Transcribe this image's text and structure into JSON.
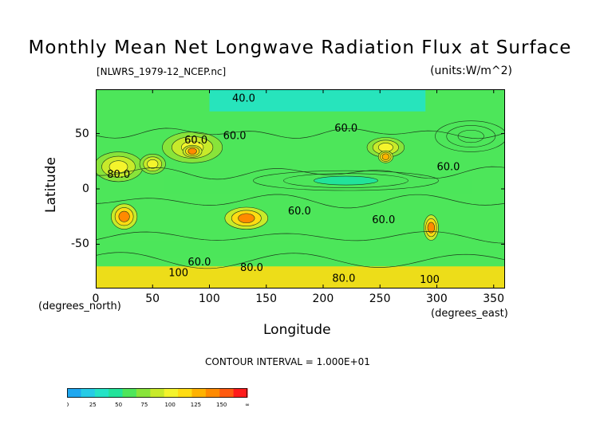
{
  "chart_data": {
    "type": "heatmap",
    "title": "Monthly Mean Net Longwave Radiation Flux at Surface",
    "file_label": "[NLWRS_1979-12_NCEP.nc]",
    "units_label": "(units:W/m^2)",
    "xlabel": "Longitude",
    "ylabel": "Latitude",
    "x_unit_label": "(degrees_east)",
    "y_unit_label": "(degrees_north)",
    "xlim": [
      0,
      360
    ],
    "ylim": [
      -90,
      90
    ],
    "x_ticks": [
      0,
      50,
      100,
      150,
      200,
      250,
      300,
      350
    ],
    "y_ticks": [
      50,
      0,
      -50
    ],
    "contour_interval_text": "CONTOUR INTERVAL = 1.000E+01",
    "contour_labels": [
      {
        "text": "40.0",
        "lon": 120,
        "lat": 79
      },
      {
        "text": "60.0",
        "lon": 210,
        "lat": 52
      },
      {
        "text": "60.0",
        "lon": 78,
        "lat": 41
      },
      {
        "text": "60.0",
        "lon": 112,
        "lat": 45
      },
      {
        "text": "80.0",
        "lon": 10,
        "lat": 10
      },
      {
        "text": "60.0",
        "lon": 300,
        "lat": 17
      },
      {
        "text": "60.0",
        "lon": 169,
        "lat": -23
      },
      {
        "text": "60.0",
        "lon": 243,
        "lat": -31
      },
      {
        "text": "60.0",
        "lon": 81,
        "lat": -69
      },
      {
        "text": "100",
        "lon": 64,
        "lat": -79
      },
      {
        "text": "80.0",
        "lon": 127,
        "lat": -74
      },
      {
        "text": "80.0",
        "lon": 208,
        "lat": -84
      },
      {
        "text": "100",
        "lon": 285,
        "lat": -85
      }
    ],
    "colorbar": {
      "ticks": [
        "0",
        "25",
        "50",
        "75",
        "100",
        "125",
        "150",
        "∞"
      ],
      "levels": [
        0,
        12.5,
        25,
        37.5,
        50,
        62.5,
        75,
        87.5,
        100,
        112.5,
        125,
        137.5,
        150
      ],
      "colors": [
        "#1ea7f0",
        "#25cbe6",
        "#24e3c6",
        "#22e39a",
        "#4de65a",
        "#88e43a",
        "#c8ea2a",
        "#f4f42c",
        "#ffdc12",
        "#ffb200",
        "#ff8a00",
        "#ff5a10",
        "#ff1a1a"
      ]
    },
    "features": [
      {
        "name": "global-background",
        "value": 62
      },
      {
        "name": "north-atlantic-band",
        "lon": [
          300,
          360
        ],
        "lat": [
          35,
          60
        ],
        "value": 50
      },
      {
        "name": "tropical-band",
        "lon": [
          60,
          330
        ],
        "lat": [
          -5,
          12
        ],
        "value": 50
      },
      {
        "name": "tropical-band-2",
        "lon": [
          140,
          300
        ],
        "lat": [
          0,
          15
        ],
        "value": 48
      },
      {
        "name": "southern-ocean-band",
        "lon": [
          0,
          360
        ],
        "lat": [
          -48,
          -62
        ],
        "value": 52
      },
      {
        "name": "sahara",
        "lon": [
          0,
          40
        ],
        "lat": [
          8,
          32
        ],
        "value": 95
      },
      {
        "name": "arabia",
        "lon": [
          40,
          60
        ],
        "lat": [
          15,
          30
        ],
        "value": 90
      },
      {
        "name": "central-asia",
        "lon": [
          60,
          110
        ],
        "lat": [
          25,
          50
        ],
        "value": 90
      },
      {
        "name": "tibet",
        "lon": [
          78,
          92
        ],
        "lat": [
          30,
          38
        ],
        "value": 130
      },
      {
        "name": "north-america",
        "lon": [
          240,
          270
        ],
        "lat": [
          30,
          45
        ],
        "value": 95
      },
      {
        "name": "mexico",
        "lon": [
          250,
          260
        ],
        "lat": [
          25,
          33
        ],
        "value": 120
      },
      {
        "name": "southern-africa",
        "lon": [
          15,
          35
        ],
        "lat": [
          -35,
          -15
        ],
        "value": 135
      },
      {
        "name": "australia",
        "lon": [
          115,
          150
        ],
        "lat": [
          -35,
          -18
        ],
        "value": 130
      },
      {
        "name": "south-america",
        "lon": [
          290,
          300
        ],
        "lat": [
          -45,
          -25
        ],
        "value": 130
      },
      {
        "name": "antarctica",
        "lon": [
          0,
          360
        ],
        "lat": [
          -90,
          -70
        ],
        "value": 110
      },
      {
        "name": "arctic-cold-spots",
        "lon": [
          100,
          290
        ],
        "lat": [
          70,
          90
        ],
        "value": 25
      }
    ]
  }
}
